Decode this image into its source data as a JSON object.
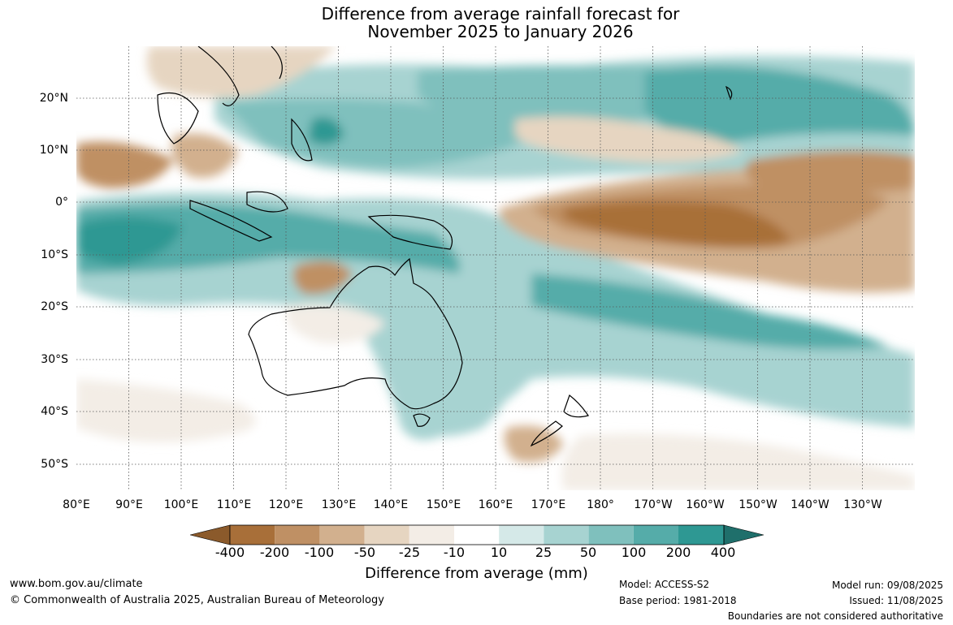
{
  "title": {
    "line1": "Difference from average rainfall forecast for",
    "line2": "November 2025 to January 2026"
  },
  "map": {
    "lon_range": [
      80,
      240
    ],
    "lat_range": [
      -55,
      30
    ],
    "lat_labels": [
      "20°N",
      "10°N",
      "0°",
      "10°S",
      "20°S",
      "30°S",
      "40°S",
      "50°S"
    ],
    "lon_labels": [
      "80°E",
      "90°E",
      "100°E",
      "110°E",
      "120°E",
      "130°E",
      "140°E",
      "150°E",
      "160°E",
      "170°E",
      "180°",
      "170°W",
      "160°W",
      "150°W",
      "140°W",
      "130°W"
    ]
  },
  "colorbar": {
    "labels": [
      "-400",
      "-200",
      "-100",
      "-50",
      "-25",
      "-10",
      "10",
      "25",
      "50",
      "100",
      "200",
      "400"
    ],
    "colors": [
      "#8b5a2b",
      "#a86f39",
      "#bf9064",
      "#d2b08e",
      "#e6d5c1",
      "#f3ede6",
      "#ffffff",
      "#d5e9e8",
      "#a7d3d1",
      "#7fc0bd",
      "#55aca9",
      "#2e9893",
      "#1f6f6b"
    ],
    "title": "Difference from average (mm)"
  },
  "footer": {
    "url": "www.bom.gov.au/climate",
    "copyright": "© Commonwealth of Australia 2025, Australian Bureau of Meteorology",
    "model": "Model: ACCESS-S2",
    "base_period": "Base period: 1981-2018",
    "model_run": "Model run: 09/08/2025",
    "issued": "Issued: 11/08/2025",
    "boundaries": "Boundaries are not considered authoritative"
  }
}
